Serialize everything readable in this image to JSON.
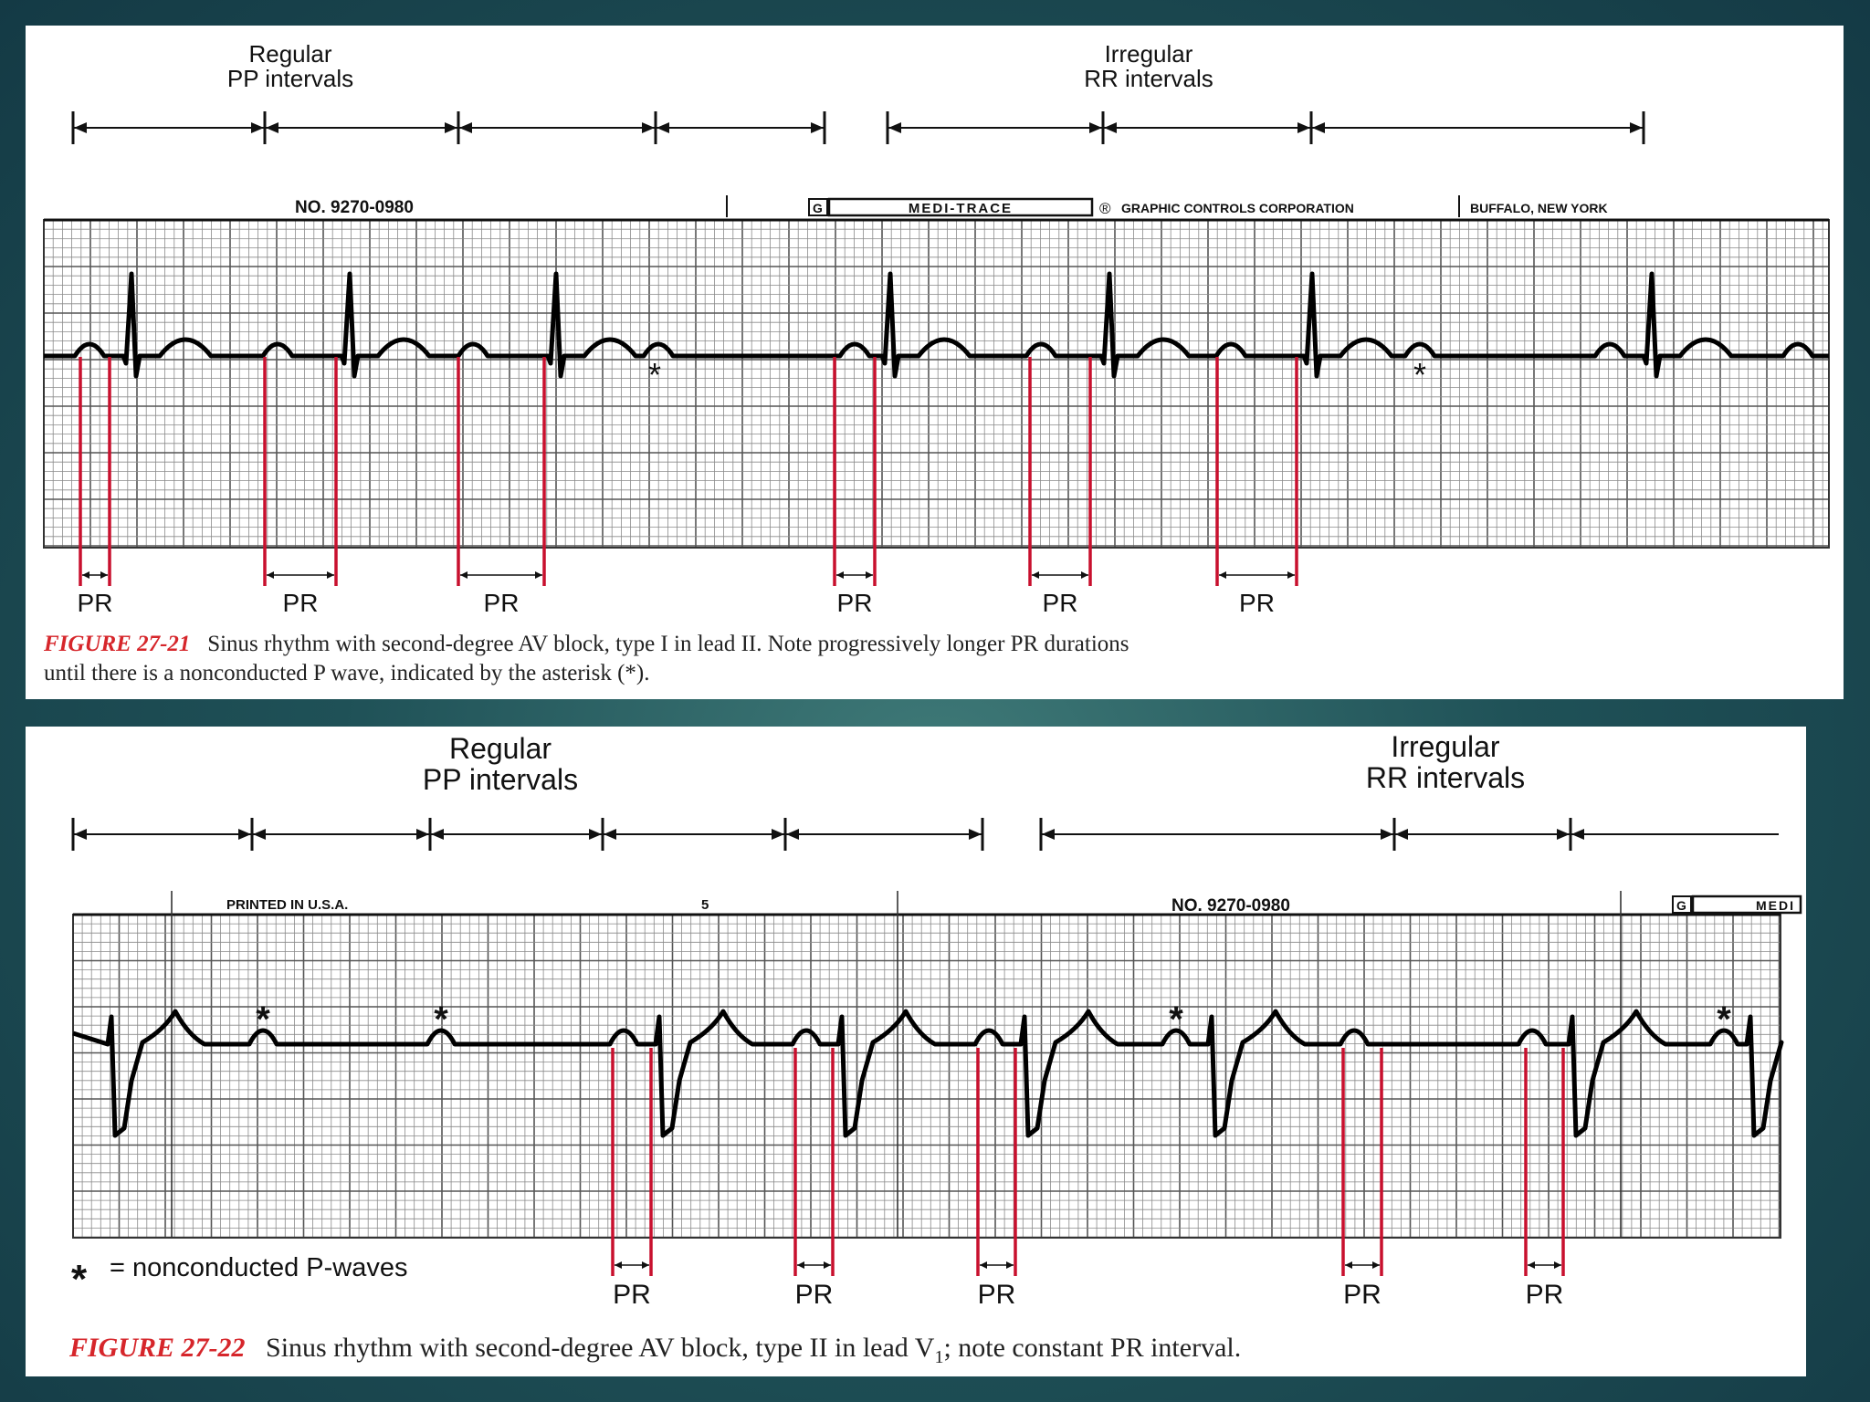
{
  "colors": {
    "grid_major": "#555555",
    "grid_minor": "#8a8a8a",
    "trace": "#000000",
    "pr_marker": "#c8102e",
    "figure_label": "#d6262b"
  },
  "top_figure": {
    "label_regular": [
      "Regular",
      "PP intervals"
    ],
    "label_irregular": [
      "Irregular",
      "RR intervals"
    ],
    "paper_no": "NO. 9270-0980",
    "brand_logo": "G",
    "brand_box": "MEDI-TRACE",
    "registered": "®",
    "company": "GRAPHIC CONTROLS CORPORATION",
    "city": "BUFFALO, NEW YORK",
    "asterisk": "*",
    "pr_label": "PR",
    "figure_label": "FIGURE 27-21",
    "caption_line1": "Sinus rhythm with second-degree AV block, type I in lead II. Note progressively longer PR durations",
    "caption_line2": "until there is a nonconducted P wave, indicated by the asterisk (*)."
  },
  "bottom_figure": {
    "label_regular": [
      "Regular",
      "PP intervals"
    ],
    "label_irregular": [
      "Irregular",
      "RR intervals"
    ],
    "printed": "PRINTED IN U.S.A.",
    "page_no": "5",
    "paper_no": "NO. 9270-0980",
    "brand_logo": "G",
    "brand_box": "MEDI",
    "asterisk": "*",
    "legend": "= nonconducted P-waves",
    "pr_label": "PR",
    "figure_label": "FIGURE 27-22",
    "caption_main": "Sinus rhythm with second-degree AV block, type II in lead V",
    "caption_sub": "1",
    "caption_end": "; note constant PR interval."
  }
}
